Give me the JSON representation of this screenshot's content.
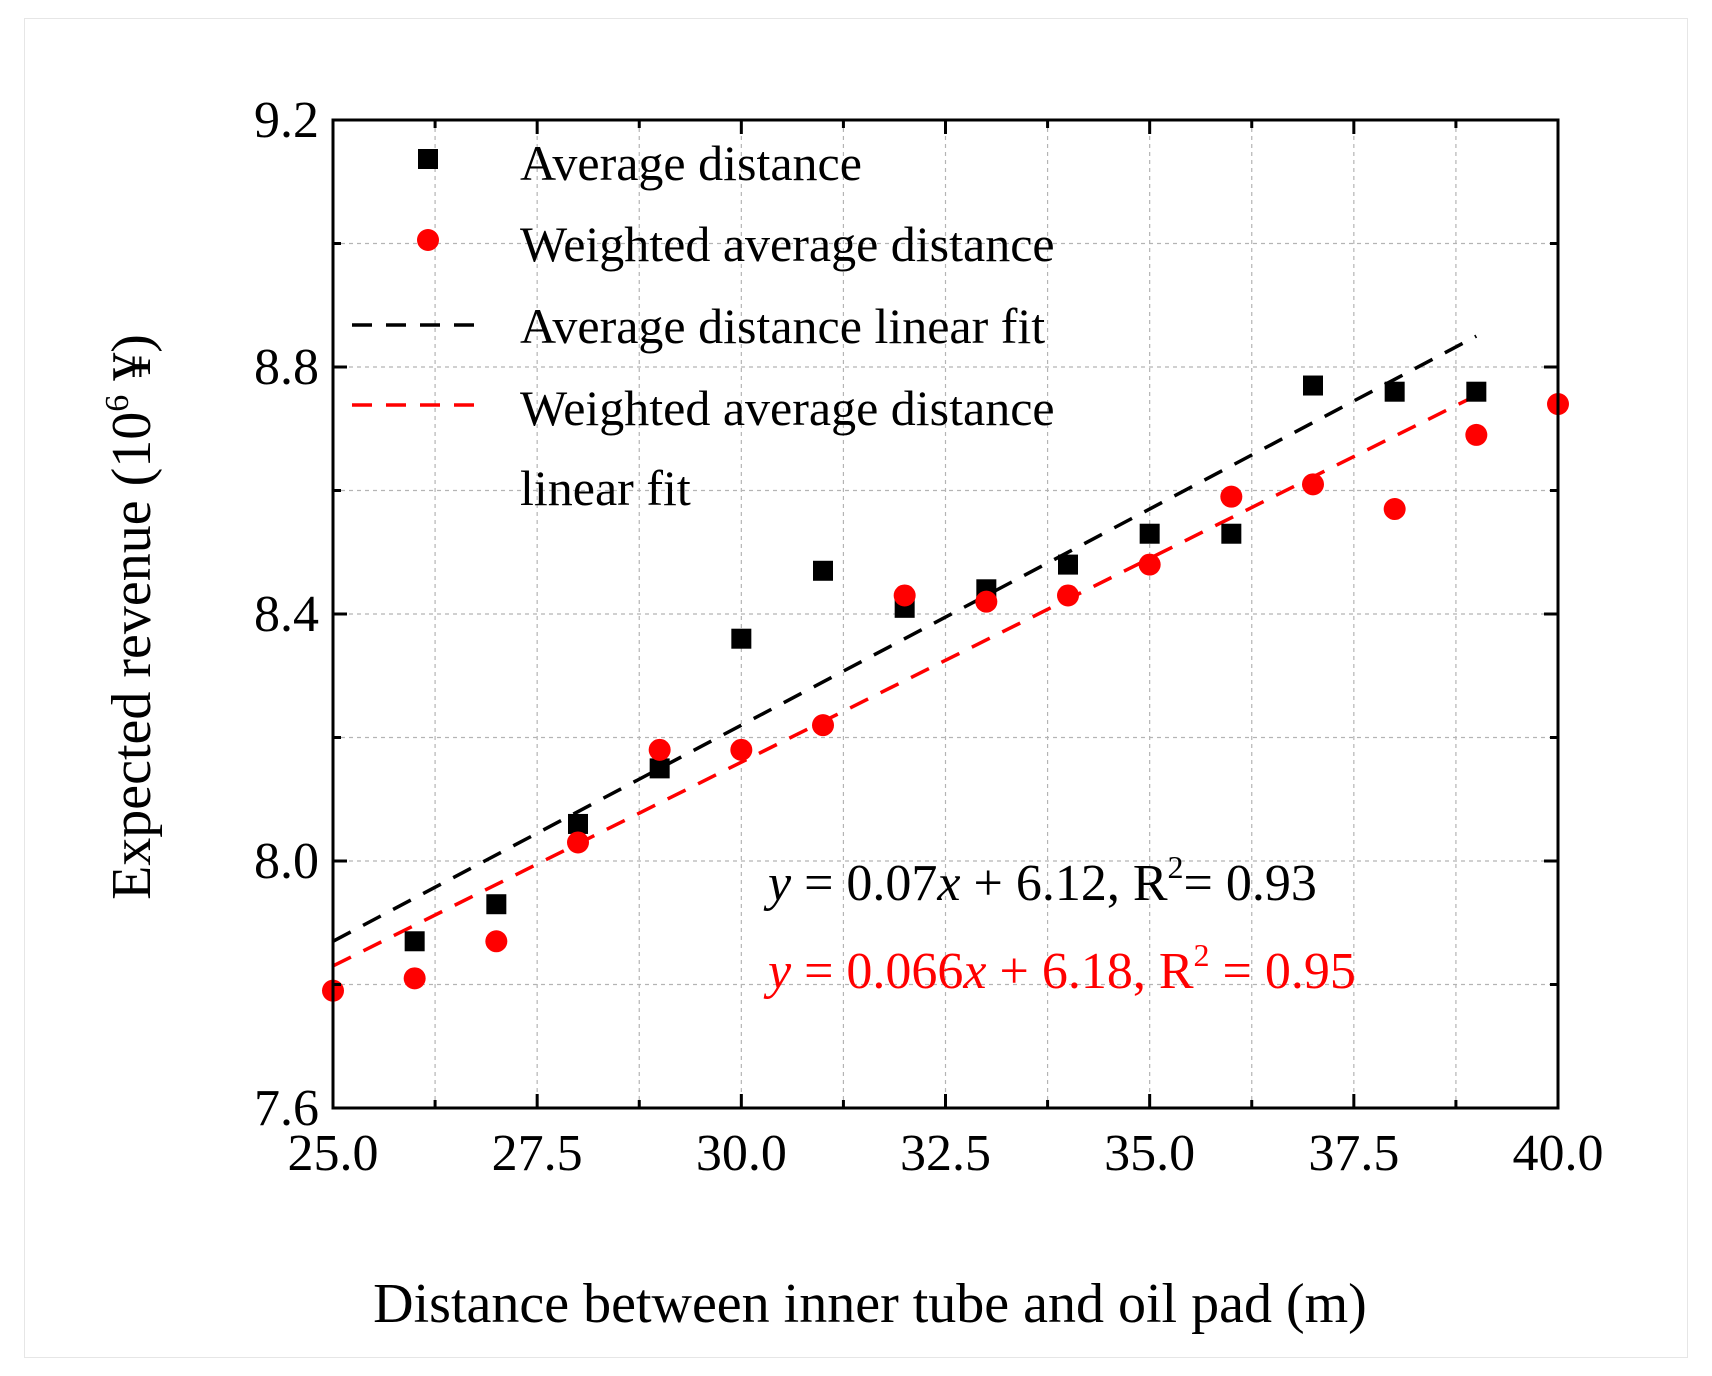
{
  "chart_data": {
    "type": "scatter",
    "xlabel": "Distance between inner tube and oil pad (m)",
    "ylabel": "Expected revenue (10",
    "ylabel_sup": "6",
    "ylabel_unit": " ¥)",
    "xlim": [
      25.0,
      40.0
    ],
    "ylim": [
      7.6,
      9.2
    ],
    "xticks": [
      "25.0",
      "27.5",
      "30.0",
      "32.5",
      "35.0",
      "37.5",
      "40.0"
    ],
    "yticks": [
      "7.6",
      "8.0",
      "8.4",
      "8.8",
      "9.2"
    ],
    "grid": true,
    "legend_position": "top-left",
    "series": [
      {
        "name": "Average distance",
        "marker": "square",
        "color": "#000000",
        "x": [
          26,
          27,
          28,
          29,
          30,
          31,
          32,
          33,
          34,
          35,
          36,
          37,
          38,
          39
        ],
        "y": [
          7.87,
          7.93,
          8.06,
          8.15,
          8.36,
          8.47,
          8.41,
          8.44,
          8.48,
          8.53,
          8.53,
          8.77,
          8.76,
          8.76
        ]
      },
      {
        "name": "Weighted average distance",
        "marker": "circle",
        "color": "#ff0000",
        "x": [
          25,
          26,
          27,
          28,
          29,
          30,
          31,
          32,
          33,
          34,
          35,
          36,
          37,
          38,
          39,
          40
        ],
        "y": [
          7.79,
          7.81,
          7.87,
          8.03,
          8.18,
          8.18,
          8.22,
          8.43,
          8.42,
          8.43,
          8.48,
          8.59,
          8.61,
          8.57,
          8.69,
          8.74
        ]
      }
    ],
    "fits": [
      {
        "name": "Average distance linear fit",
        "color": "#000000",
        "slope": 0.07,
        "intercept": 6.12,
        "x_range": [
          25,
          39
        ]
      },
      {
        "name": "Weighted average distance linear fit",
        "color": "#ff0000",
        "slope": 0.066,
        "intercept": 6.18,
        "x_range": [
          25,
          39
        ]
      }
    ],
    "legend": {
      "entries": [
        {
          "label": "Average distance",
          "kind": "square",
          "color": "#000000"
        },
        {
          "label": "Weighted average distance",
          "kind": "circle",
          "color": "#ff0000"
        },
        {
          "label": "Average distance linear fit",
          "kind": "dash",
          "color": "#000000"
        },
        {
          "label": "Weighted average distance",
          "label2": "linear fit",
          "kind": "dash",
          "color": "#ff0000"
        }
      ]
    },
    "equations": [
      {
        "y": "y",
        "eq": " = 0.07",
        "x": "x",
        "rest": " + 6.12, R",
        "sup": "2",
        "end": "= 0.93",
        "color": "#000000"
      },
      {
        "y": "y",
        "eq": " = 0.066",
        "x": "x",
        "rest": " + 6.18, R",
        "sup": "2",
        "end": " = 0.95",
        "color": "#ff0000"
      }
    ]
  }
}
